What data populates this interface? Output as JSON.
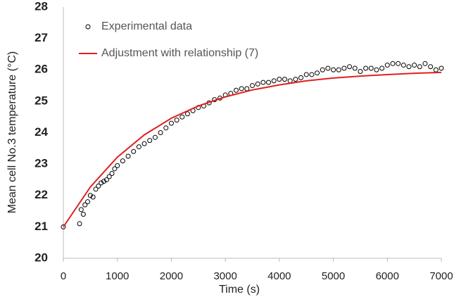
{
  "chart_data": {
    "type": "scatter",
    "x_label": "Time (s)",
    "y_label": "Mean cell No.3 temperature (°C)",
    "xlim": [
      0,
      7000
    ],
    "ylim": [
      20,
      28
    ],
    "xticks": [
      0,
      1000,
      2000,
      3000,
      4000,
      5000,
      6000,
      7000
    ],
    "yticks": [
      20,
      21,
      22,
      23,
      24,
      25,
      26,
      27,
      28
    ],
    "grid": false,
    "legend": "top-left",
    "series": [
      {
        "name": "Experimental data",
        "type": "scatter",
        "color": "#000000",
        "x": [
          0,
          300,
          330,
          370,
          400,
          450,
          500,
          550,
          600,
          650,
          700,
          750,
          800,
          850,
          900,
          950,
          1000,
          1100,
          1200,
          1300,
          1400,
          1500,
          1600,
          1700,
          1800,
          1900,
          2000,
          2100,
          2200,
          2300,
          2400,
          2500,
          2600,
          2700,
          2800,
          2900,
          3000,
          3100,
          3200,
          3300,
          3400,
          3500,
          3600,
          3700,
          3800,
          3900,
          4000,
          4100,
          4200,
          4300,
          4400,
          4500,
          4600,
          4700,
          4800,
          4900,
          5000,
          5100,
          5200,
          5300,
          5400,
          5500,
          5600,
          5700,
          5800,
          5900,
          6000,
          6100,
          6200,
          6300,
          6400,
          6500,
          6600,
          6700,
          6800,
          6900,
          7000
        ],
        "values": [
          21.0,
          21.1,
          21.55,
          21.4,
          21.7,
          21.8,
          22.0,
          21.95,
          22.2,
          22.3,
          22.4,
          22.45,
          22.5,
          22.6,
          22.7,
          22.85,
          22.95,
          23.1,
          23.25,
          23.4,
          23.55,
          23.65,
          23.75,
          23.85,
          24.0,
          24.15,
          24.3,
          24.4,
          24.5,
          24.6,
          24.7,
          24.8,
          24.85,
          24.95,
          25.05,
          25.1,
          25.2,
          25.25,
          25.35,
          25.4,
          25.4,
          25.5,
          25.55,
          25.6,
          25.6,
          25.65,
          25.7,
          25.7,
          25.65,
          25.7,
          25.75,
          25.85,
          25.85,
          25.9,
          26.0,
          26.05,
          26.0,
          26.0,
          26.05,
          26.1,
          26.05,
          25.95,
          26.05,
          26.05,
          26.0,
          26.05,
          26.15,
          26.2,
          26.2,
          26.15,
          26.1,
          26.15,
          26.1,
          26.2,
          26.1,
          26.0,
          26.05
        ]
      },
      {
        "name": "Adjustment with relationship (7)",
        "type": "line",
        "color": "#e02020",
        "x": [
          0,
          500,
          1000,
          1500,
          2000,
          2500,
          3000,
          3500,
          4000,
          4500,
          5000,
          5500,
          6000,
          6500,
          7000
        ],
        "values": [
          21.0,
          22.27,
          23.22,
          23.93,
          24.46,
          24.85,
          25.14,
          25.36,
          25.52,
          25.65,
          25.74,
          25.8,
          25.85,
          25.89,
          25.92
        ]
      }
    ]
  }
}
